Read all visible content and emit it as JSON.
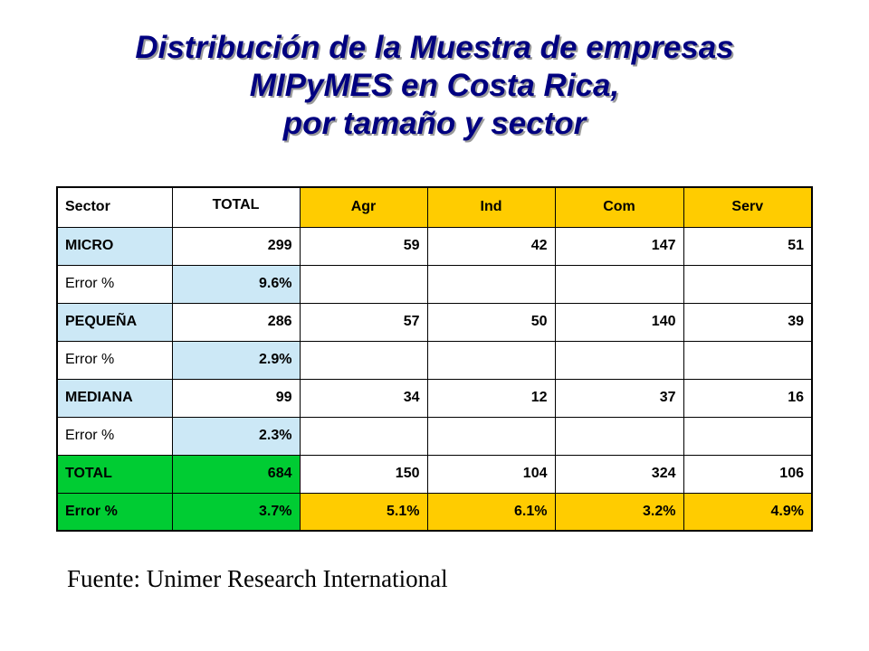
{
  "title": {
    "line1": "Distribución de la Muestra de empresas",
    "line2": "MIPyMES en Costa Rica,",
    "line3": "por tamaño y sector"
  },
  "table": {
    "header": {
      "sector": "Sector",
      "total": "TOTAL",
      "agr": "Agr",
      "ind": "Ind",
      "com": "Com",
      "serv": "Serv"
    },
    "rows": [
      {
        "label": "MICRO",
        "total": "299",
        "agr": "59",
        "ind": "42",
        "com": "147",
        "serv": "51"
      },
      {
        "label": "Error %",
        "total": "9.6%"
      },
      {
        "label": "PEQUEÑA",
        "total": "286",
        "agr": "57",
        "ind": "50",
        "com": "140",
        "serv": "39"
      },
      {
        "label": "Error %",
        "total": "2.9%"
      },
      {
        "label": "MEDIANA",
        "total": "99",
        "agr": "34",
        "ind": "12",
        "com": "37",
        "serv": "16"
      },
      {
        "label": "Error %",
        "total": "2.3%"
      },
      {
        "label": "TOTAL",
        "total": "684",
        "agr": "150",
        "ind": "104",
        "com": "324",
        "serv": "106"
      },
      {
        "label": "Error %",
        "total": "3.7%",
        "agr": "5.1%",
        "ind": "6.1%",
        "com": "3.2%",
        "serv": "4.9%"
      }
    ]
  },
  "source": "Fuente: Unimer Research International",
  "colors": {
    "title": "#000080",
    "light_blue": "#cce8f6",
    "yellow": "#ffcc00",
    "green": "#00cc33"
  }
}
